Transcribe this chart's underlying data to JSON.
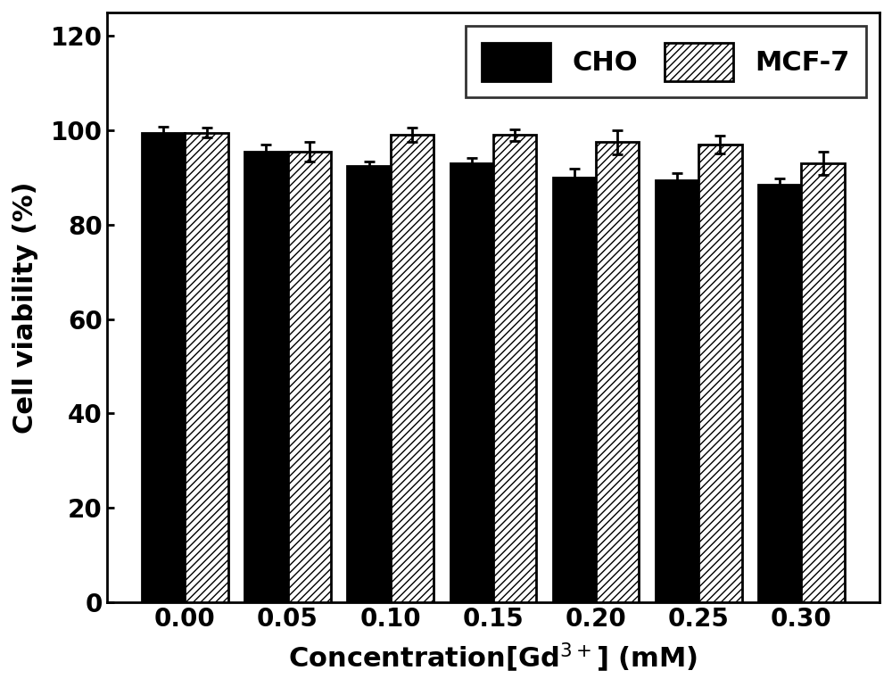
{
  "categories": [
    "0.00",
    "0.05",
    "0.10",
    "0.15",
    "0.20",
    "0.25",
    "0.30"
  ],
  "cho_values": [
    99.5,
    95.5,
    92.5,
    93.0,
    90.0,
    89.5,
    88.5
  ],
  "mcf7_values": [
    99.5,
    95.5,
    99.0,
    99.0,
    97.5,
    97.0,
    93.0
  ],
  "cho_errors": [
    1.2,
    1.5,
    1.0,
    1.2,
    1.8,
    1.5,
    1.3
  ],
  "mcf7_errors": [
    1.0,
    2.0,
    1.5,
    1.2,
    2.5,
    1.8,
    2.5
  ],
  "ylabel": "Cell viability (%)",
  "xlabel": "Concentration[Gd$^{3+}$] (mM)",
  "ylim": [
    0,
    125
  ],
  "yticks": [
    0,
    20,
    40,
    60,
    80,
    100,
    120
  ],
  "bar_width": 0.42,
  "cho_color": "#000000",
  "mcf7_color": "#ffffff",
  "legend_cho": "CHO",
  "legend_mcf7": "MCF-7",
  "background_color": "#ffffff",
  "label_fontsize": 22,
  "tick_fontsize": 20,
  "legend_fontsize": 22,
  "linewidth": 2.0
}
